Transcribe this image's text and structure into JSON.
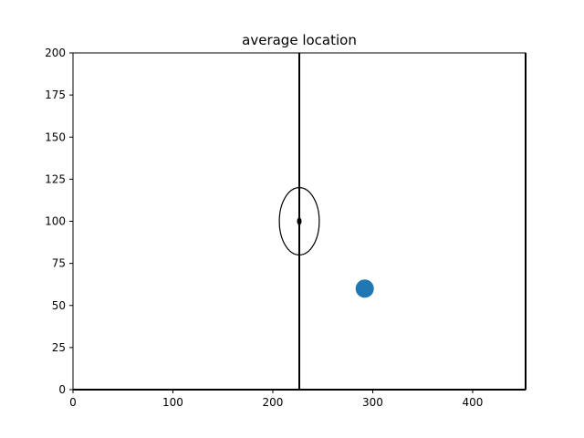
{
  "chart_data": {
    "type": "scatter",
    "title": "average location",
    "xlabel": "",
    "ylabel": "",
    "xlim": [
      0,
      453
    ],
    "ylim": [
      0,
      200
    ],
    "xticks": [
      0,
      100,
      200,
      300,
      400
    ],
    "yticks": [
      0,
      25,
      50,
      75,
      100,
      125,
      150,
      175,
      200
    ],
    "grid": false,
    "series": [
      {
        "points": [
          {
            "x": 292,
            "y": 60
          }
        ],
        "color": "#1f77b4"
      }
    ],
    "annotations": {
      "vertical_line_x": 226.5,
      "right_border_x": 453,
      "bottom_border_y": 0,
      "ellipse": {
        "cx": 226.5,
        "cy": 100,
        "rx": 20,
        "ry": 20
      },
      "center_marker": {
        "x": 226.5,
        "y": 100
      }
    }
  }
}
